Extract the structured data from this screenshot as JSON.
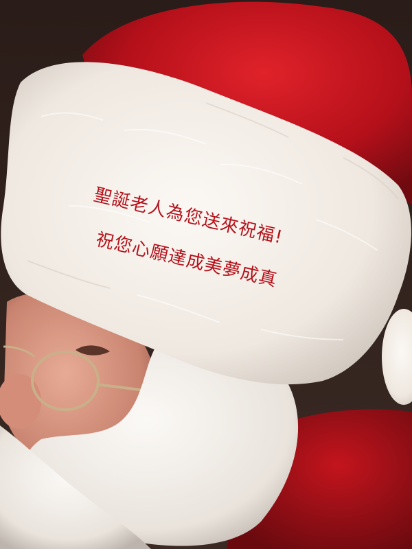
{
  "greeting": {
    "line1": "聖誕老人為您送來祝福!",
    "line2": "祝您心願達成美夢成真"
  },
  "colors": {
    "text": "#b3121b",
    "hat_red": "#c0121b",
    "fur_white": "#f4efe9",
    "skin": "#d99a86",
    "background": "#1a1210"
  }
}
